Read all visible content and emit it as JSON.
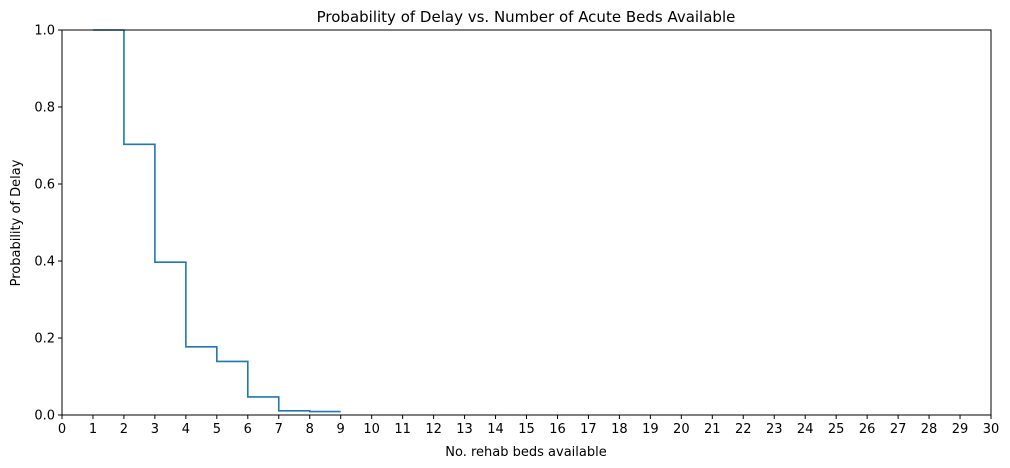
{
  "chart_data": {
    "type": "line",
    "drawstyle": "steps-post",
    "title": "Probability of Delay vs. Number of Acute Beds Available",
    "xlabel": "No. rehab beds available",
    "ylabel": "Probability of Delay",
    "xlim": [
      0,
      30
    ],
    "ylim": [
      0,
      1
    ],
    "xticks": [
      0,
      1,
      2,
      3,
      4,
      5,
      6,
      7,
      8,
      9,
      10,
      11,
      12,
      13,
      14,
      15,
      16,
      17,
      18,
      19,
      20,
      21,
      22,
      23,
      24,
      25,
      26,
      27,
      28,
      29,
      30
    ],
    "yticks": [
      0.0,
      0.2,
      0.4,
      0.6,
      0.8,
      1.0
    ],
    "ytick_labels": [
      "0.0",
      "0.2",
      "0.4",
      "0.6",
      "0.8",
      "1.0"
    ],
    "grid": false,
    "series": [
      {
        "color": "#1f77b4",
        "x": [
          1,
          2,
          3,
          4,
          5,
          6,
          7,
          8,
          9
        ],
        "y": [
          1.0,
          0.703,
          0.397,
          0.177,
          0.139,
          0.047,
          0.011,
          0.009,
          0.009
        ]
      }
    ]
  }
}
